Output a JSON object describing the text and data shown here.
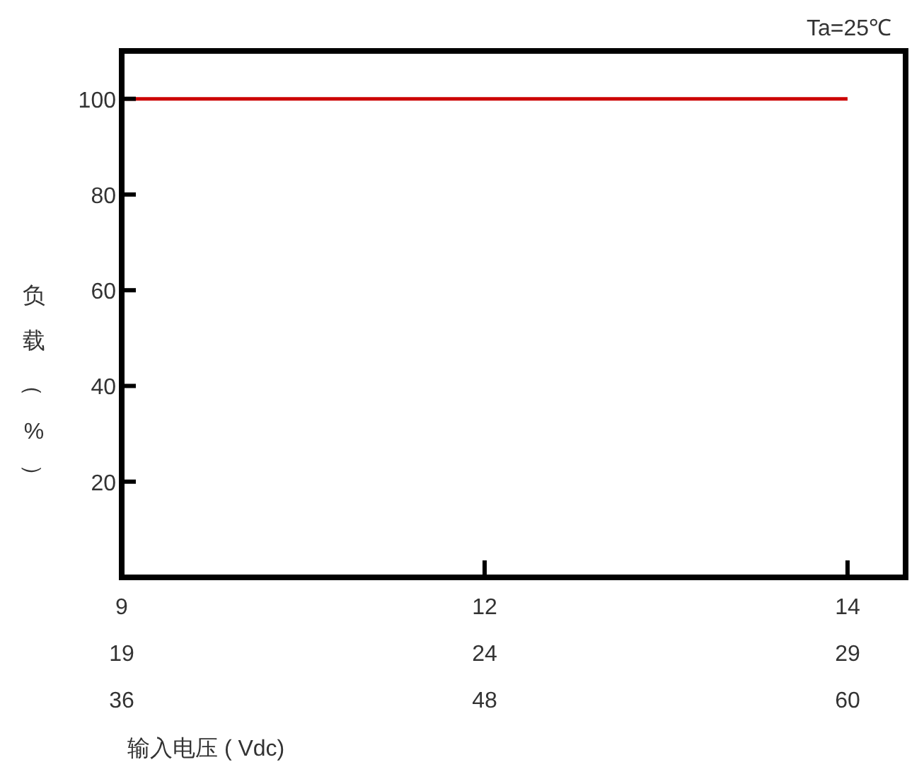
{
  "chart_data": {
    "type": "line",
    "xlabel": "输入电压 ( Vdc)",
    "ylabel": "负载（%）",
    "annotations": [
      "Ta=25℃"
    ],
    "categories": [
      "9\n19\n36",
      "12\n24\n48",
      "14\n29\n60"
    ],
    "series": [
      {
        "color": "#cc0000",
        "values": [
          100,
          100,
          100
        ]
      }
    ],
    "ylim": [
      0,
      110
    ],
    "yticks": [
      20,
      40,
      60,
      {
        "value": 80,
        "label": "80"
      },
      100
    ],
    "grid": false,
    "marker": "none",
    "line_style": "solid"
  }
}
